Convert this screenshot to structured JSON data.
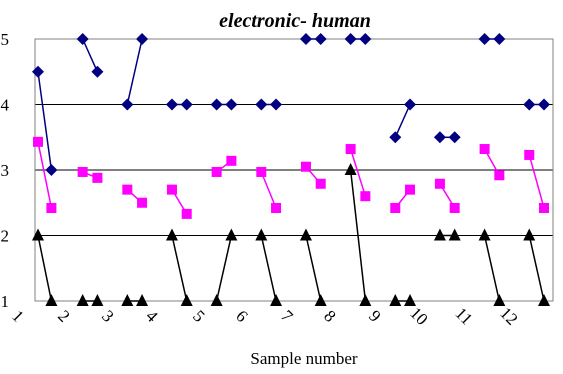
{
  "chart_data": {
    "type": "line",
    "title": "electronic- human",
    "xlabel": "Sample number",
    "ylabel": "",
    "ylim": [
      1,
      5
    ],
    "yticks": [
      "1",
      "2",
      "3",
      "4",
      "5"
    ],
    "categories": [
      "1",
      "2",
      "3",
      "4",
      "5",
      "6",
      "7",
      "8",
      "9",
      "10",
      "11",
      "12"
    ],
    "grid": true,
    "legend": "none",
    "series": [
      {
        "color": "#000080",
        "marker": "diamond",
        "points": [
          [
            1,
            4.5
          ],
          [
            1.3,
            3
          ],
          [
            null,
            null
          ],
          [
            2,
            5
          ],
          [
            2.33,
            4.5
          ],
          [
            null,
            null
          ],
          [
            3,
            4
          ],
          [
            3.33,
            5
          ],
          [
            null,
            null
          ],
          [
            4,
            4
          ],
          [
            4.33,
            4
          ],
          [
            null,
            null
          ],
          [
            5,
            4
          ],
          [
            5.33,
            4
          ],
          [
            null,
            null
          ],
          [
            6,
            4
          ],
          [
            6.33,
            4
          ],
          [
            null,
            null
          ],
          [
            7,
            5
          ],
          [
            7.33,
            5
          ],
          [
            null,
            null
          ],
          [
            8,
            5
          ],
          [
            8.33,
            5
          ],
          [
            null,
            null
          ],
          [
            9,
            3.5
          ],
          [
            9.33,
            4
          ],
          [
            null,
            null
          ],
          [
            10,
            3.5
          ],
          [
            10.33,
            3.5
          ],
          [
            null,
            null
          ],
          [
            11,
            5
          ],
          [
            11.33,
            5
          ],
          [
            null,
            null
          ],
          [
            12,
            4
          ],
          [
            12.33,
            4
          ]
        ]
      },
      {
        "color": "#ff00ff",
        "marker": "square",
        "points": [
          [
            1,
            3.43
          ],
          [
            1.3,
            2.42
          ],
          [
            null,
            null
          ],
          [
            2,
            2.97
          ],
          [
            2.33,
            2.88
          ],
          [
            null,
            null
          ],
          [
            3,
            2.7
          ],
          [
            3.33,
            2.5
          ],
          [
            null,
            null
          ],
          [
            4,
            2.7
          ],
          [
            4.33,
            2.33
          ],
          [
            null,
            null
          ],
          [
            5,
            2.97
          ],
          [
            5.33,
            3.14
          ],
          [
            null,
            null
          ],
          [
            6,
            2.97
          ],
          [
            6.33,
            2.42
          ],
          [
            null,
            null
          ],
          [
            7,
            3.05
          ],
          [
            7.33,
            2.79
          ],
          [
            null,
            null
          ],
          [
            8,
            3.32
          ],
          [
            8.33,
            2.6
          ],
          [
            null,
            null
          ],
          [
            9,
            2.42
          ],
          [
            9.33,
            2.7
          ],
          [
            null,
            null
          ],
          [
            10,
            2.79
          ],
          [
            10.33,
            2.42
          ],
          [
            null,
            null
          ],
          [
            11,
            3.32
          ],
          [
            11.33,
            2.92
          ],
          [
            null,
            null
          ],
          [
            12,
            3.23
          ],
          [
            12.33,
            2.42
          ]
        ]
      },
      {
        "color": "#000000",
        "marker": "triangle",
        "points": [
          [
            1,
            2
          ],
          [
            1.3,
            1
          ],
          [
            null,
            null
          ],
          [
            2,
            1
          ],
          [
            2.33,
            1
          ],
          [
            null,
            null
          ],
          [
            3,
            1
          ],
          [
            3.33,
            1
          ],
          [
            null,
            null
          ],
          [
            4,
            2
          ],
          [
            4.33,
            1
          ],
          [
            null,
            null
          ],
          [
            5,
            1
          ],
          [
            5.33,
            2
          ],
          [
            null,
            null
          ],
          [
            6,
            2
          ],
          [
            6.33,
            1
          ],
          [
            null,
            null
          ],
          [
            7,
            2
          ],
          [
            7.33,
            1
          ],
          [
            null,
            null
          ],
          [
            8,
            3
          ],
          [
            8.33,
            1
          ],
          [
            null,
            null
          ],
          [
            9,
            1
          ],
          [
            9.33,
            1
          ],
          [
            null,
            null
          ],
          [
            10,
            2
          ],
          [
            10.33,
            2
          ],
          [
            null,
            null
          ],
          [
            11,
            2
          ],
          [
            11.33,
            1
          ],
          [
            null,
            null
          ],
          [
            12,
            2
          ],
          [
            12.33,
            1
          ]
        ]
      }
    ]
  }
}
